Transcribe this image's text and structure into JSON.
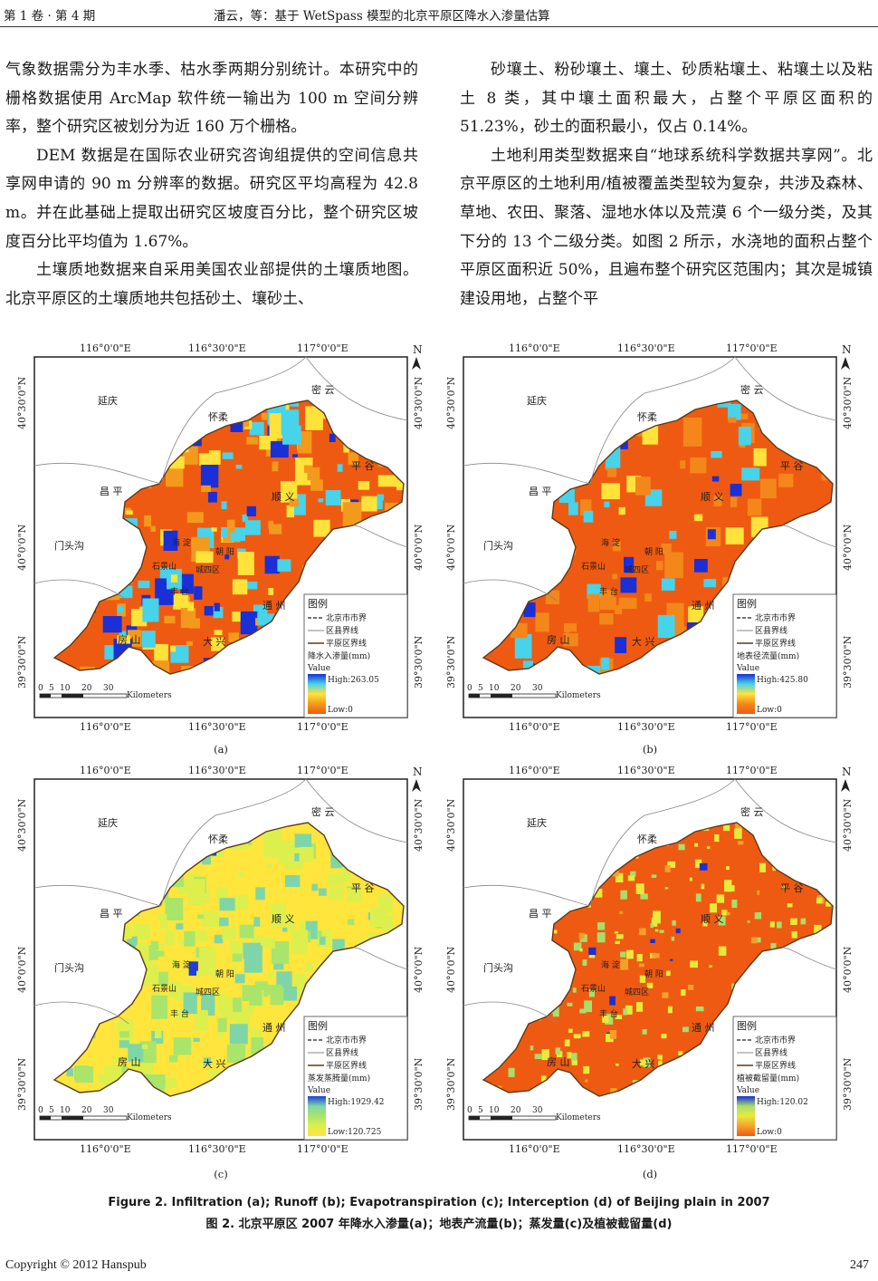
{
  "header": {
    "volume": "第 1 卷 · 第 4 期",
    "running_title": "潘云，等：基于 WetSpass 模型的北京平原区降水入渗量估算"
  },
  "left_column": [
    "气象数据需分为丰水季、枯水季两期分别统计。本研究中的栅格数据使用 ArcMap 软件统一输出为 100 m 空间分辨率，整个研究区被划分为近 160 万个栅格。",
    "DEM 数据是在国际农业研究咨询组提供的空间信息共享网申请的 90 m 分辨率的数据。研究区平均高程为 42.8 m。并在此基础上提取出研究区坡度百分比，整个研究区坡度百分比平均值为 1.67%。",
    "土壤质地数据来自采用美国农业部提供的土壤质地图。北京平原区的土壤质地共包括砂土、壤砂土、"
  ],
  "right_column": [
    "砂壤土、粉砂壤土、壤土、砂质粘壤土、粘壤土以及粘土 8 类，其中壤土面积最大，占整个平原区面积的 51.23%，砂土的面积最小，仅占 0.14%。",
    "土地利用类型数据来自“地球系统科学数据共享网”。北京平原区的土地利用/植被覆盖类型较为复杂，共涉及森林、草地、农田、聚落、湿地水体以及荒漠 6 个一级分类，及其下分的 13 个二级分类。如图 2 所示，水浇地的面积占整个平原区面积近 50%，且遍布整个研究区范围内；其次是城镇建设用地，占整个平"
  ],
  "maps": {
    "lon_labels": [
      "116°0'0\"E",
      "116°30'0\"E",
      "117°0'0\"E"
    ],
    "lat_labels": [
      "40°30'0\"N",
      "40°0'0\"N",
      "39°30'0\"N"
    ],
    "north": "N",
    "districts": [
      "延庆",
      "密 云",
      "怀柔",
      "平 谷",
      "昌 平",
      "顺 义",
      "门头沟",
      "海 淀",
      "朝 阳",
      "石景山",
      "城四区",
      "丰 台",
      "通 州",
      "房 山",
      "大 兴"
    ],
    "scale_numbers": [
      "0",
      "5",
      "10",
      "20",
      "30"
    ],
    "scale_unit": "Kilometers",
    "legend": {
      "title": "图例",
      "city_boundary": "北京市市界",
      "county_boundary": "区县界线",
      "plain_boundary": "平原区界线",
      "value_label": "Value"
    },
    "panels": [
      {
        "id": "(a)",
        "variable": "降水入渗量(mm)",
        "high": "High:263.05",
        "low": "Low:0",
        "colors": [
          "#ef5a12",
          "#f39a1c",
          "#ffe23a",
          "#47d3ea",
          "#1a2fd6"
        ],
        "weights": [
          0.42,
          0.18,
          0.14,
          0.16,
          0.1
        ]
      },
      {
        "id": "(b)",
        "variable": "地表径流量(mm)",
        "high": "High:425.80",
        "low": "Low:0",
        "colors": [
          "#ef5a12",
          "#f4871a",
          "#ffe23a",
          "#47d3ea",
          "#1a2fd6"
        ],
        "weights": [
          0.72,
          0.12,
          0.04,
          0.08,
          0.04
        ]
      },
      {
        "id": "(c)",
        "variable": "蒸发蒸腾量(mm)",
        "high": "High:1929.42",
        "low": "Low:120.725",
        "colors": [
          "#ffe53c",
          "#ddef4c",
          "#a8e56a",
          "#7ed6a8",
          "#1f3fd8"
        ],
        "weights": [
          0.34,
          0.34,
          0.18,
          0.12,
          0.02
        ]
      },
      {
        "id": "(d)",
        "variable": "植被截留量(mm)",
        "high": "High:120.02",
        "low": "Low:0",
        "colors": [
          "#ef5a12",
          "#f6a02a",
          "#e8ea3a",
          "#a7df6a",
          "#1a2fd6"
        ],
        "weights": [
          0.38,
          0.1,
          0.3,
          0.19,
          0.03
        ]
      }
    ]
  },
  "caption": {
    "en": "Figure 2. Infiltration (a); Runoff (b); Evapotranspiration (c); Interception (d) of Beijing plain in 2007",
    "zh": "图 2. 北京平原区 2007 年降水入渗量(a)；地表产流量(b)；蒸发量(c)及植被截留量(d)"
  },
  "footer": {
    "copyright": "Copyright © 2012 Hanspub",
    "page": "247"
  }
}
